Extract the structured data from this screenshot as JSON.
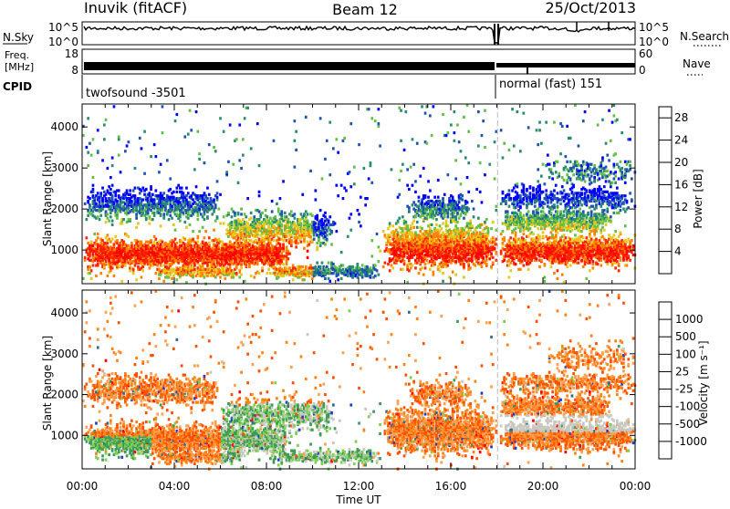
{
  "header": {
    "station": "Inuvik (fitACF)",
    "beam": "Beam 12",
    "date": "25/Oct/2013"
  },
  "noise_panel": {
    "left_label": "N.Sky",
    "left_ticks": [
      "10^5",
      "10^0"
    ],
    "right_label": "N.Search",
    "right_ticks": [
      "10^5",
      "10^0"
    ]
  },
  "freq_panel": {
    "left_label_1": "Freq.",
    "left_label_2": "[MHz]",
    "left_ticks": [
      "18",
      "8"
    ],
    "right_label": "Nave",
    "right_ticks": [
      "60",
      "0"
    ]
  },
  "cpid": {
    "label": "CPID",
    "mode_1": "twofsound -3501",
    "mode_2": "normal (fast) 151"
  },
  "chart_data": [
    {
      "type": "heatmap",
      "title": "",
      "xlabel": "Time UT",
      "ylabel": "Slant Range [km]",
      "x_tick_labels": [
        "00:00",
        "04:00",
        "08:00",
        "12:00",
        "16:00",
        "20:00",
        "00:00"
      ],
      "xlim_hours": [
        0,
        24
      ],
      "y_ticks": [
        1000,
        2000,
        3000,
        4000
      ],
      "ylim": [
        180,
        4560
      ],
      "colorbar": {
        "label": "Power [dB]",
        "tick_labels": [
          "4",
          "8",
          "12",
          "16",
          "20",
          "24",
          "28"
        ],
        "range": [
          0,
          30
        ],
        "colors": [
          "#0000ff",
          "#1e52b4",
          "#2a8c6e",
          "#62c046",
          "#e6c81e",
          "#ff8200",
          "#ff2800",
          "#ff0000"
        ]
      }
    },
    {
      "type": "heatmap",
      "title": "",
      "xlabel": "Time UT",
      "ylabel": "Slant Range [km]",
      "x_tick_labels": [
        "00:00",
        "04:00",
        "08:00",
        "12:00",
        "16:00",
        "20:00",
        "00:00"
      ],
      "xlim_hours": [
        0,
        24
      ],
      "y_ticks": [
        1000,
        2000,
        3000,
        4000
      ],
      "ylim": [
        180,
        4560
      ],
      "colorbar": {
        "label": "Velocity [m s⁻¹]",
        "tick_labels": [
          "1000",
          "500",
          "100",
          "25",
          "-25",
          "-100",
          "-500",
          "-1000"
        ],
        "colors": [
          "#1e3cc8",
          "#2e6c8a",
          "#3c9a5a",
          "#7ed050",
          "#c8c8c0",
          "#ffa050",
          "#ff8214",
          "#ff5000",
          "#ff0000"
        ]
      }
    }
  ]
}
